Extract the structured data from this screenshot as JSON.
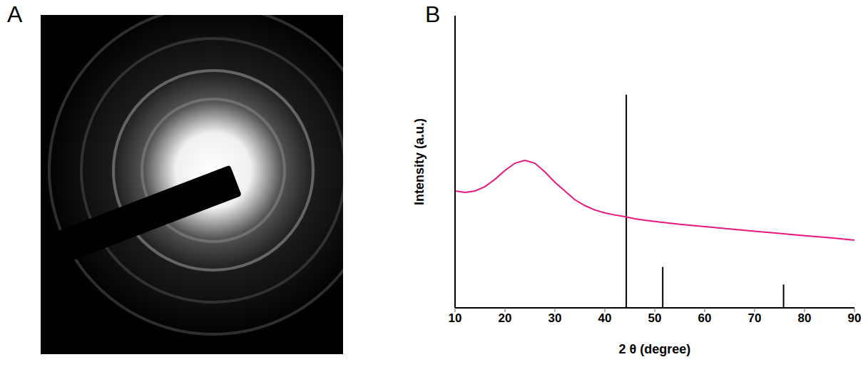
{
  "panel_labels": [
    "A",
    "B"
  ],
  "chart_data": {
    "type": "line",
    "xlabel": "2 θ (degree)",
    "ylabel": "Intensity (a.u.)",
    "xlim": [
      10,
      90
    ],
    "xticks": [
      10,
      20,
      30,
      40,
      50,
      60,
      70,
      80,
      90
    ],
    "ylim": [
      0,
      100
    ],
    "yticks": [],
    "tick_labels": "x",
    "series": [
      {
        "type": "line",
        "color": "#e8177d",
        "x": [
          10,
          12,
          14,
          16,
          18,
          20,
          22,
          24,
          26,
          28,
          30,
          32,
          34,
          36,
          38,
          40,
          42,
          44,
          46,
          48,
          50,
          55,
          60,
          65,
          70,
          75,
          80,
          85,
          90
        ],
        "values": [
          40,
          39.5,
          40,
          41.5,
          44,
          47,
          49.5,
          50.5,
          49.5,
          46.5,
          43,
          40,
          37,
          35,
          33.5,
          32.5,
          31.8,
          31.2,
          30.5,
          30,
          29.6,
          28.6,
          27.8,
          27,
          26.2,
          25.5,
          24.7,
          24,
          23.2
        ]
      },
      {
        "type": "stick",
        "color": "#000000",
        "x": [
          44.3,
          51.6,
          75.8
        ],
        "values": [
          73,
          14,
          8
        ]
      }
    ]
  }
}
